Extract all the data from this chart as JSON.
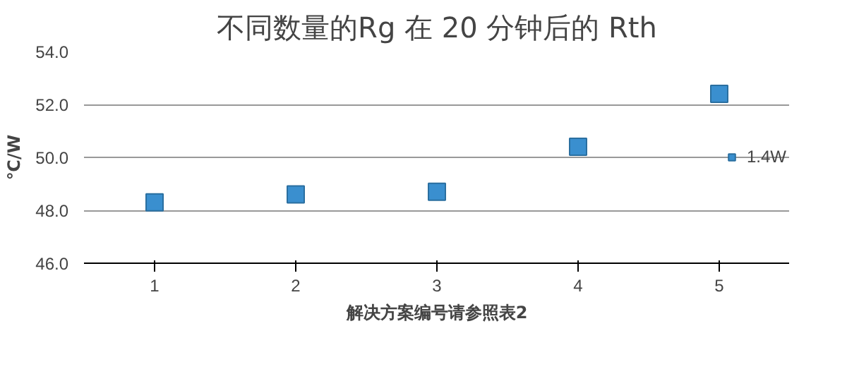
{
  "chart_data": {
    "type": "scatter",
    "title": "不同数量的Rg 在 20 分钟后的 Rth",
    "xlabel": "解决方案编号请参照表2",
    "ylabel": "℃/W",
    "categories": [
      "1",
      "2",
      "3",
      "4",
      "5"
    ],
    "series": [
      {
        "name": "1.4W",
        "color": "#3a8fcf",
        "values": [
          48.3,
          48.6,
          48.7,
          50.4,
          52.4
        ]
      }
    ],
    "ylim": [
      46,
      54
    ],
    "yticks": [
      {
        "value": 46,
        "label": "46.0"
      },
      {
        "value": 48,
        "label": "48.0"
      },
      {
        "value": 50,
        "label": "50.0"
      },
      {
        "value": 52,
        "label": "52.0"
      },
      {
        "value": 54,
        "label": "54.0"
      }
    ],
    "grid": "y",
    "legend": "right",
    "marker": "square"
  }
}
